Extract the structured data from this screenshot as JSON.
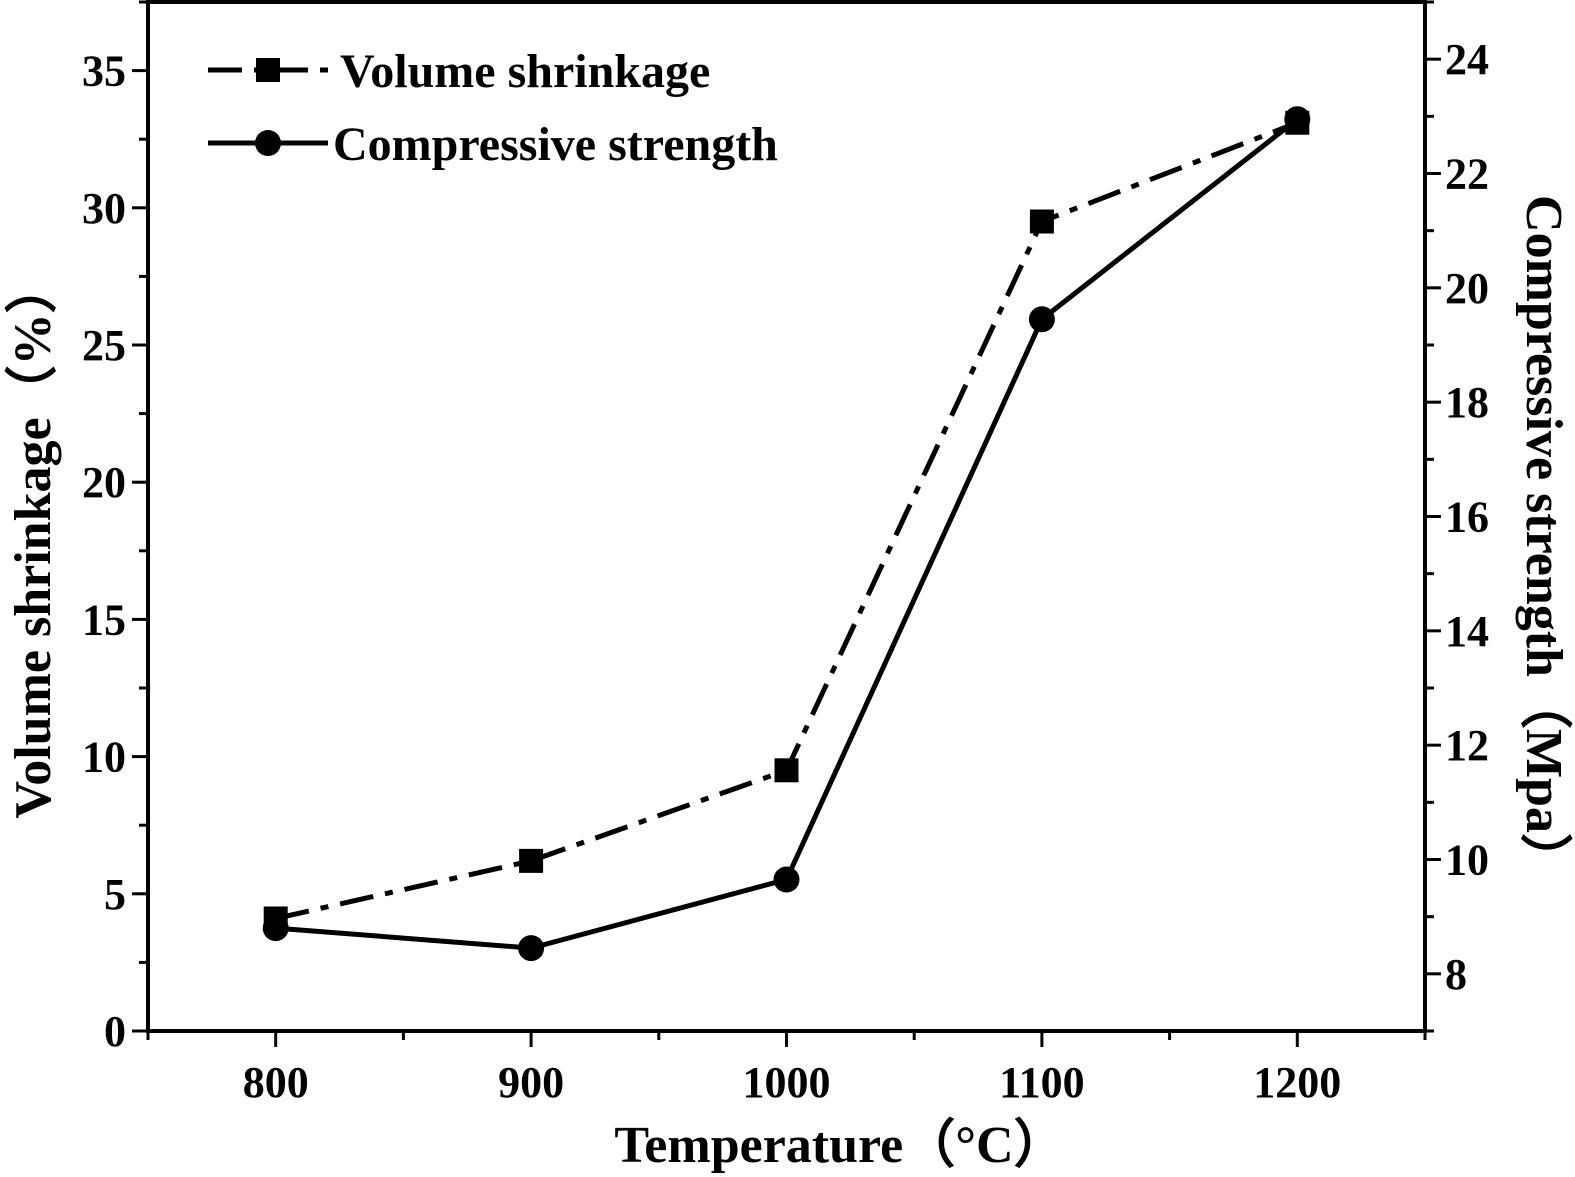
{
  "chart_data": {
    "type": "line",
    "x": [
      800,
      900,
      1000,
      1100,
      1200
    ],
    "xlabel": "Temperature（°C）",
    "xlim": [
      750,
      1250
    ],
    "xticks": [
      800,
      900,
      1000,
      1100,
      1200
    ],
    "ylabel_left": "Volume shrinkage（%）",
    "ylim_left": [
      0,
      37.5
    ],
    "yticks_left": [
      0,
      5,
      10,
      15,
      20,
      25,
      30,
      35
    ],
    "ylabel_right": "Compressive strength（Mpa）",
    "ylim_right": [
      7,
      25
    ],
    "yticks_right": [
      8,
      10,
      12,
      14,
      16,
      18,
      20,
      22,
      24
    ],
    "legend_position": "top-left",
    "grid": false,
    "series": [
      {
        "name": "Volume shrinkage",
        "axis": "left",
        "marker": "square",
        "line_style": "dash-dot",
        "values": [
          4.1,
          6.2,
          9.5,
          29.5,
          33.1
        ]
      },
      {
        "name": "Compressive strength",
        "axis": "right",
        "marker": "circle",
        "line_style": "solid",
        "values": [
          8.8,
          8.45,
          9.65,
          19.45,
          22.95
        ]
      }
    ]
  }
}
